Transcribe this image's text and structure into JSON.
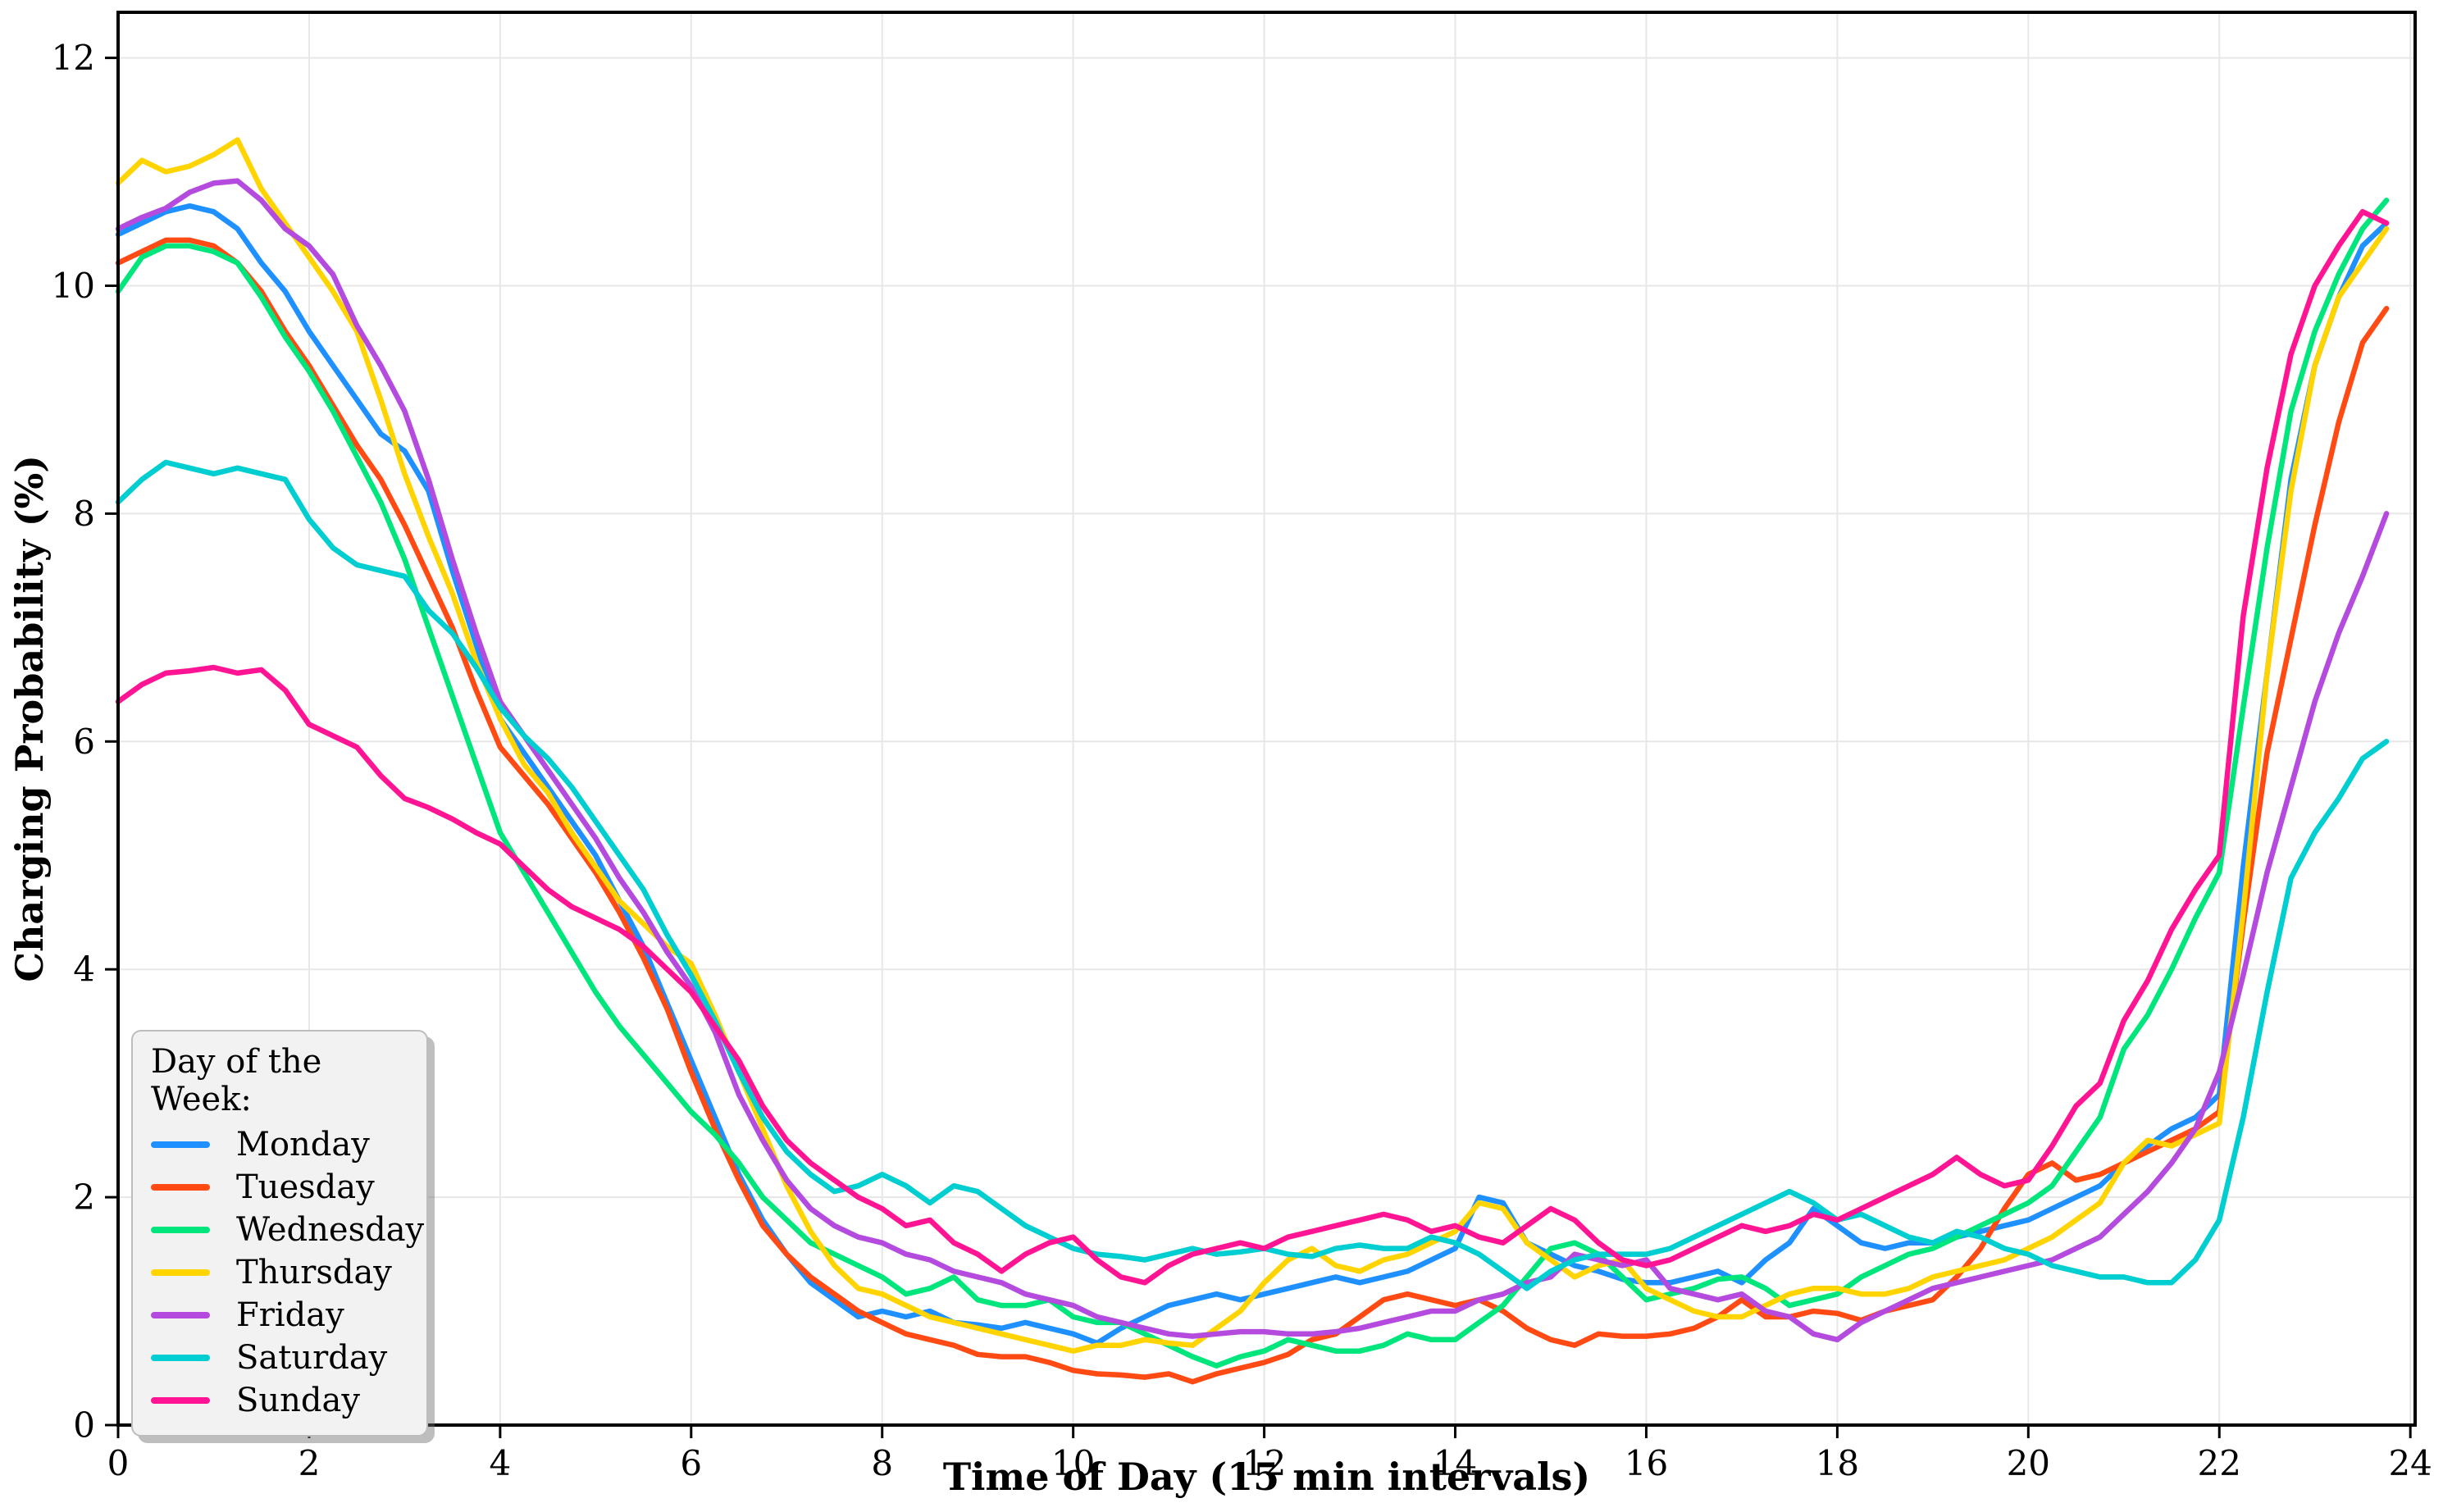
{
  "legend": {
    "title": "Day of the Week:"
  },
  "chart_data": {
    "type": "line",
    "title": "",
    "xlabel": "Time of Day (15 min intervals)",
    "ylabel": "Charging Probability (%)",
    "xlim": [
      0,
      24.05
    ],
    "ylim": [
      0,
      12.4
    ],
    "xticks": [
      0,
      2,
      4,
      6,
      8,
      10,
      12,
      14,
      16,
      18,
      20,
      22,
      24
    ],
    "yticks": [
      0,
      2,
      4,
      6,
      8,
      10,
      12
    ],
    "grid": true,
    "grid_color": "#e7e7e7",
    "legend_position": "lower left",
    "x_start": 0,
    "x_step": 0.25,
    "series": [
      {
        "name": "Monday",
        "color": "#1E90FF",
        "values": [
          10.45,
          10.55,
          10.65,
          10.7,
          10.65,
          10.5,
          10.2,
          9.95,
          9.6,
          9.3,
          9.0,
          8.7,
          8.55,
          8.2,
          7.5,
          6.85,
          6.2,
          5.9,
          5.6,
          5.3,
          5.0,
          4.6,
          4.2,
          3.7,
          3.2,
          2.7,
          2.2,
          1.8,
          1.5,
          1.25,
          1.1,
          0.95,
          1.0,
          0.95,
          1.0,
          0.9,
          0.88,
          0.85,
          0.9,
          0.85,
          0.8,
          0.72,
          0.85,
          0.95,
          1.05,
          1.1,
          1.15,
          1.1,
          1.15,
          1.2,
          1.25,
          1.3,
          1.25,
          1.3,
          1.35,
          1.45,
          1.55,
          2.0,
          1.95,
          1.6,
          1.5,
          1.4,
          1.35,
          1.28,
          1.25,
          1.25,
          1.3,
          1.35,
          1.25,
          1.45,
          1.6,
          1.9,
          1.75,
          1.6,
          1.55,
          1.6,
          1.6,
          1.65,
          1.7,
          1.75,
          1.8,
          1.9,
          2.0,
          2.1,
          2.3,
          2.45,
          2.6,
          2.7,
          2.9,
          4.9,
          6.6,
          8.3,
          9.3,
          9.9,
          10.35,
          10.55
        ]
      },
      {
        "name": "Tuesday",
        "color": "#FF4A14",
        "values": [
          10.2,
          10.3,
          10.4,
          10.4,
          10.35,
          10.2,
          9.95,
          9.6,
          9.3,
          8.95,
          8.6,
          8.3,
          7.9,
          7.45,
          7.0,
          6.45,
          5.95,
          5.7,
          5.45,
          5.15,
          4.85,
          4.5,
          4.1,
          3.65,
          3.1,
          2.6,
          2.15,
          1.75,
          1.5,
          1.3,
          1.15,
          1.0,
          0.9,
          0.8,
          0.75,
          0.7,
          0.62,
          0.6,
          0.6,
          0.55,
          0.48,
          0.45,
          0.44,
          0.42,
          0.45,
          0.38,
          0.45,
          0.5,
          0.55,
          0.62,
          0.75,
          0.8,
          0.95,
          1.1,
          1.15,
          1.1,
          1.05,
          1.1,
          1.0,
          0.85,
          0.75,
          0.7,
          0.8,
          0.78,
          0.78,
          0.8,
          0.85,
          0.95,
          1.1,
          0.95,
          0.95,
          1.0,
          0.98,
          0.92,
          1.0,
          1.05,
          1.1,
          1.3,
          1.55,
          1.9,
          2.2,
          2.3,
          2.15,
          2.2,
          2.3,
          2.4,
          2.5,
          2.6,
          2.75,
          4.4,
          5.9,
          6.9,
          7.9,
          8.8,
          9.5,
          9.8
        ]
      },
      {
        "name": "Wednesday",
        "color": "#00E67C",
        "values": [
          9.95,
          10.25,
          10.35,
          10.35,
          10.3,
          10.2,
          9.9,
          9.55,
          9.25,
          8.9,
          8.5,
          8.1,
          7.6,
          7.0,
          6.4,
          5.8,
          5.2,
          4.85,
          4.5,
          4.15,
          3.8,
          3.5,
          3.25,
          3.0,
          2.75,
          2.55,
          2.3,
          2.0,
          1.8,
          1.6,
          1.5,
          1.4,
          1.3,
          1.15,
          1.2,
          1.3,
          1.1,
          1.05,
          1.05,
          1.1,
          0.95,
          0.9,
          0.9,
          0.8,
          0.7,
          0.6,
          0.52,
          0.6,
          0.65,
          0.75,
          0.7,
          0.65,
          0.65,
          0.7,
          0.8,
          0.75,
          0.75,
          0.9,
          1.05,
          1.3,
          1.55,
          1.6,
          1.5,
          1.3,
          1.1,
          1.15,
          1.2,
          1.28,
          1.3,
          1.2,
          1.05,
          1.1,
          1.15,
          1.3,
          1.4,
          1.5,
          1.55,
          1.65,
          1.75,
          1.85,
          1.95,
          2.1,
          2.4,
          2.7,
          3.3,
          3.6,
          4.0,
          4.45,
          4.85,
          6.3,
          7.7,
          8.9,
          9.6,
          10.1,
          10.5,
          10.75
        ]
      },
      {
        "name": "Thursday",
        "color": "#FFD400",
        "values": [
          10.9,
          11.1,
          11.0,
          11.05,
          11.15,
          11.28,
          10.85,
          10.55,
          10.25,
          9.95,
          9.6,
          9.0,
          8.35,
          7.8,
          7.3,
          6.7,
          6.2,
          5.8,
          5.55,
          5.2,
          4.9,
          4.6,
          4.4,
          4.2,
          4.05,
          3.6,
          3.1,
          2.6,
          2.1,
          1.7,
          1.4,
          1.2,
          1.15,
          1.05,
          0.95,
          0.9,
          0.85,
          0.8,
          0.75,
          0.7,
          0.65,
          0.7,
          0.7,
          0.75,
          0.72,
          0.7,
          0.85,
          1.0,
          1.25,
          1.45,
          1.55,
          1.4,
          1.35,
          1.45,
          1.5,
          1.6,
          1.7,
          1.95,
          1.9,
          1.6,
          1.45,
          1.3,
          1.4,
          1.45,
          1.2,
          1.1,
          1.0,
          0.95,
          0.95,
          1.05,
          1.15,
          1.2,
          1.2,
          1.15,
          1.15,
          1.2,
          1.3,
          1.35,
          1.4,
          1.45,
          1.55,
          1.65,
          1.8,
          1.95,
          2.3,
          2.5,
          2.45,
          2.55,
          2.65,
          4.5,
          6.6,
          8.2,
          9.3,
          9.9,
          10.2,
          10.5
        ]
      },
      {
        "name": "Friday",
        "color": "#B44BDE",
        "values": [
          10.5,
          10.6,
          10.68,
          10.82,
          10.9,
          10.92,
          10.75,
          10.5,
          10.35,
          10.1,
          9.65,
          9.3,
          8.9,
          8.3,
          7.6,
          6.95,
          6.35,
          6.05,
          5.75,
          5.45,
          5.15,
          4.8,
          4.5,
          4.15,
          3.85,
          3.45,
          2.9,
          2.5,
          2.15,
          1.9,
          1.75,
          1.65,
          1.6,
          1.5,
          1.45,
          1.35,
          1.3,
          1.25,
          1.15,
          1.1,
          1.05,
          0.95,
          0.9,
          0.85,
          0.8,
          0.78,
          0.8,
          0.82,
          0.82,
          0.8,
          0.8,
          0.82,
          0.85,
          0.9,
          0.95,
          1.0,
          1.0,
          1.1,
          1.15,
          1.25,
          1.3,
          1.5,
          1.45,
          1.4,
          1.45,
          1.2,
          1.15,
          1.1,
          1.15,
          1.0,
          0.95,
          0.8,
          0.75,
          0.9,
          1.0,
          1.1,
          1.2,
          1.25,
          1.3,
          1.35,
          1.4,
          1.45,
          1.55,
          1.65,
          1.85,
          2.05,
          2.3,
          2.6,
          3.1,
          3.95,
          4.85,
          5.6,
          6.35,
          6.95,
          7.45,
          8.0
        ]
      },
      {
        "name": "Saturday",
        "color": "#00CED1",
        "values": [
          8.1,
          8.3,
          8.45,
          8.4,
          8.35,
          8.4,
          8.35,
          8.3,
          7.95,
          7.7,
          7.55,
          7.5,
          7.45,
          7.15,
          6.95,
          6.65,
          6.3,
          6.05,
          5.85,
          5.6,
          5.3,
          5.0,
          4.7,
          4.3,
          3.95,
          3.55,
          3.1,
          2.7,
          2.4,
          2.2,
          2.05,
          2.1,
          2.2,
          2.1,
          1.95,
          2.1,
          2.05,
          1.9,
          1.75,
          1.65,
          1.55,
          1.5,
          1.48,
          1.45,
          1.5,
          1.55,
          1.5,
          1.52,
          1.55,
          1.5,
          1.48,
          1.55,
          1.58,
          1.55,
          1.55,
          1.65,
          1.6,
          1.5,
          1.35,
          1.2,
          1.35,
          1.45,
          1.5,
          1.5,
          1.5,
          1.55,
          1.65,
          1.75,
          1.85,
          1.95,
          2.05,
          1.95,
          1.8,
          1.85,
          1.75,
          1.65,
          1.6,
          1.7,
          1.65,
          1.55,
          1.5,
          1.4,
          1.35,
          1.3,
          1.3,
          1.25,
          1.25,
          1.45,
          1.8,
          2.7,
          3.8,
          4.8,
          5.2,
          5.5,
          5.85,
          6.0
        ]
      },
      {
        "name": "Sunday",
        "color": "#FF1493",
        "values": [
          6.35,
          6.5,
          6.6,
          6.62,
          6.65,
          6.6,
          6.63,
          6.45,
          6.15,
          6.05,
          5.95,
          5.7,
          5.5,
          5.42,
          5.32,
          5.2,
          5.1,
          4.9,
          4.7,
          4.55,
          4.45,
          4.35,
          4.2,
          4.0,
          3.8,
          3.5,
          3.2,
          2.8,
          2.5,
          2.3,
          2.15,
          2.0,
          1.9,
          1.75,
          1.8,
          1.6,
          1.5,
          1.35,
          1.5,
          1.6,
          1.65,
          1.45,
          1.3,
          1.25,
          1.4,
          1.5,
          1.55,
          1.6,
          1.55,
          1.65,
          1.7,
          1.75,
          1.8,
          1.85,
          1.8,
          1.7,
          1.75,
          1.65,
          1.6,
          1.75,
          1.9,
          1.8,
          1.6,
          1.45,
          1.4,
          1.45,
          1.55,
          1.65,
          1.75,
          1.7,
          1.75,
          1.85,
          1.8,
          1.9,
          2.0,
          2.1,
          2.2,
          2.35,
          2.2,
          2.1,
          2.15,
          2.45,
          2.8,
          3.0,
          3.55,
          3.9,
          4.35,
          4.7,
          5.0,
          7.1,
          8.4,
          9.4,
          10.0,
          10.35,
          10.65,
          10.55
        ]
      }
    ]
  }
}
